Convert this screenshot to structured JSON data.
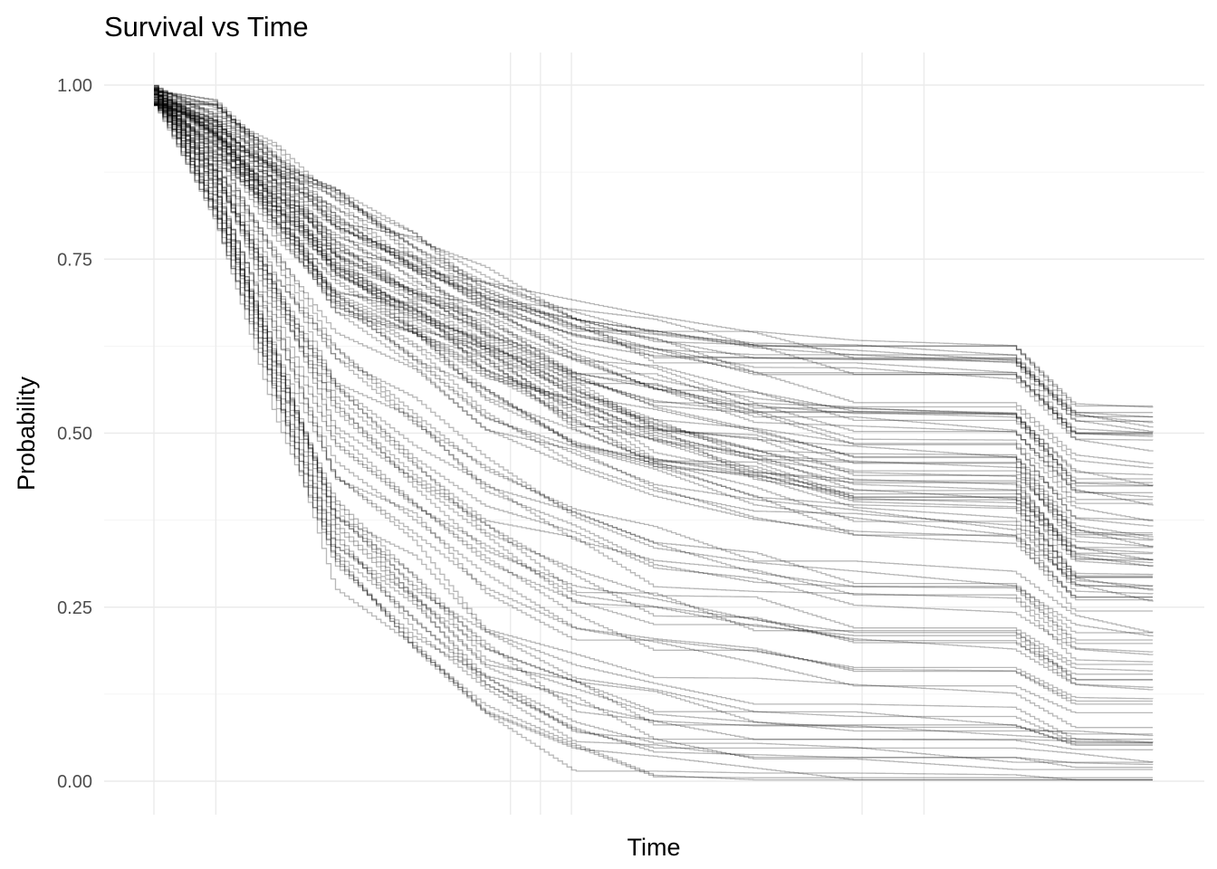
{
  "chart_data": {
    "type": "line",
    "title": "Survival vs Time",
    "xlabel": "Time",
    "ylabel": "Probability",
    "xlim": [
      0,
      1
    ],
    "ylim": [
      0,
      1
    ],
    "y_ticks": [
      0.0,
      0.25,
      0.5,
      0.75,
      1.0
    ],
    "y_tick_labels": [
      "0.00",
      "0.25",
      "0.50",
      "0.75",
      "1.00"
    ],
    "x_tick_labels": [],
    "grid": true,
    "legend": "none",
    "line_color": "#000000",
    "line_opacity": 0.3,
    "series_count": 100,
    "series": [
      {
        "x": [
          0.0,
          0.06,
          0.12,
          0.18,
          0.26,
          0.33,
          0.42,
          0.5,
          0.6,
          0.7,
          0.86,
          0.92,
          1.0
        ],
        "values": [
          1.0,
          0.82,
          0.55,
          0.3,
          0.18,
          0.09,
          0.03,
          0.008,
          0.003,
          0.001,
          0.001,
          0.0,
          0.0
        ]
      },
      {
        "x": [
          0.0,
          0.06,
          0.12,
          0.18,
          0.26,
          0.33,
          0.42,
          0.5,
          0.6,
          0.7,
          0.86,
          0.92,
          1.0
        ],
        "values": [
          1.0,
          0.92,
          0.82,
          0.72,
          0.66,
          0.59,
          0.52,
          0.48,
          0.44,
          0.41,
          0.41,
          0.3,
          0.3
        ]
      },
      {
        "x": [
          0.0,
          0.06,
          0.12,
          0.18,
          0.26,
          0.33,
          0.42,
          0.5,
          0.6,
          0.7,
          0.86,
          0.92,
          1.0
        ],
        "values": [
          1.0,
          0.96,
          0.9,
          0.84,
          0.77,
          0.72,
          0.67,
          0.65,
          0.63,
          0.63,
          0.63,
          0.54,
          0.54
        ]
      }
    ]
  }
}
